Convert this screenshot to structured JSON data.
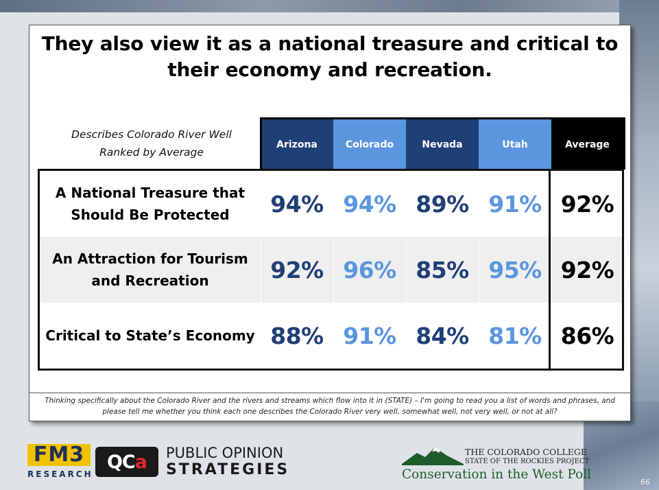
{
  "title": "They also view it as a national treasure and critical to their economy and recreation.",
  "subhead_line1": "Describes Colorado River Well",
  "subhead_line2": "Ranked by Average",
  "colors": {
    "dark_blue": "#1f3f77",
    "light_blue": "#5b96df",
    "black": "#000000"
  },
  "chart_data": {
    "type": "table",
    "columns": [
      "Arizona",
      "Colorado",
      "Nevada",
      "Utah",
      "Average"
    ],
    "rows": [
      {
        "label_line1": "A National Treasure that",
        "label_line2": "Should Be Protected",
        "values": [
          "94%",
          "94%",
          "89%",
          "91%",
          "92%"
        ]
      },
      {
        "label_line1": "An Attraction for Tourism",
        "label_line2": "and Recreation",
        "values": [
          "92%",
          "96%",
          "85%",
          "95%",
          "92%"
        ]
      },
      {
        "label_line1": "Critical to State’s Economy",
        "label_line2": "",
        "values": [
          "88%",
          "91%",
          "84%",
          "81%",
          "86%"
        ]
      }
    ]
  },
  "footnote_line1": "Thinking specifically about the Colorado River and the rivers and streams which flow into it in (STATE) – I'm going to read you a list of words and phrases, and",
  "footnote_line2": "please tell me whether you think each one describes the Colorado River very well, somewhat well, not very well, or not at all?",
  "logos": {
    "fm3_top": "FM3",
    "fm3_bottom": "RESEARCH",
    "qca_left": "QC",
    "qca_right": "a",
    "pos_line1": "PUBLIC OPINION",
    "pos_line2": "STRATEGIES",
    "cc_line1": "THE COLORADO COLLEGE",
    "cc_line2": "STATE OF THE ROCKIES PROJECT",
    "cc_line3": "Conservation in the West Poll"
  },
  "page_number": "66"
}
